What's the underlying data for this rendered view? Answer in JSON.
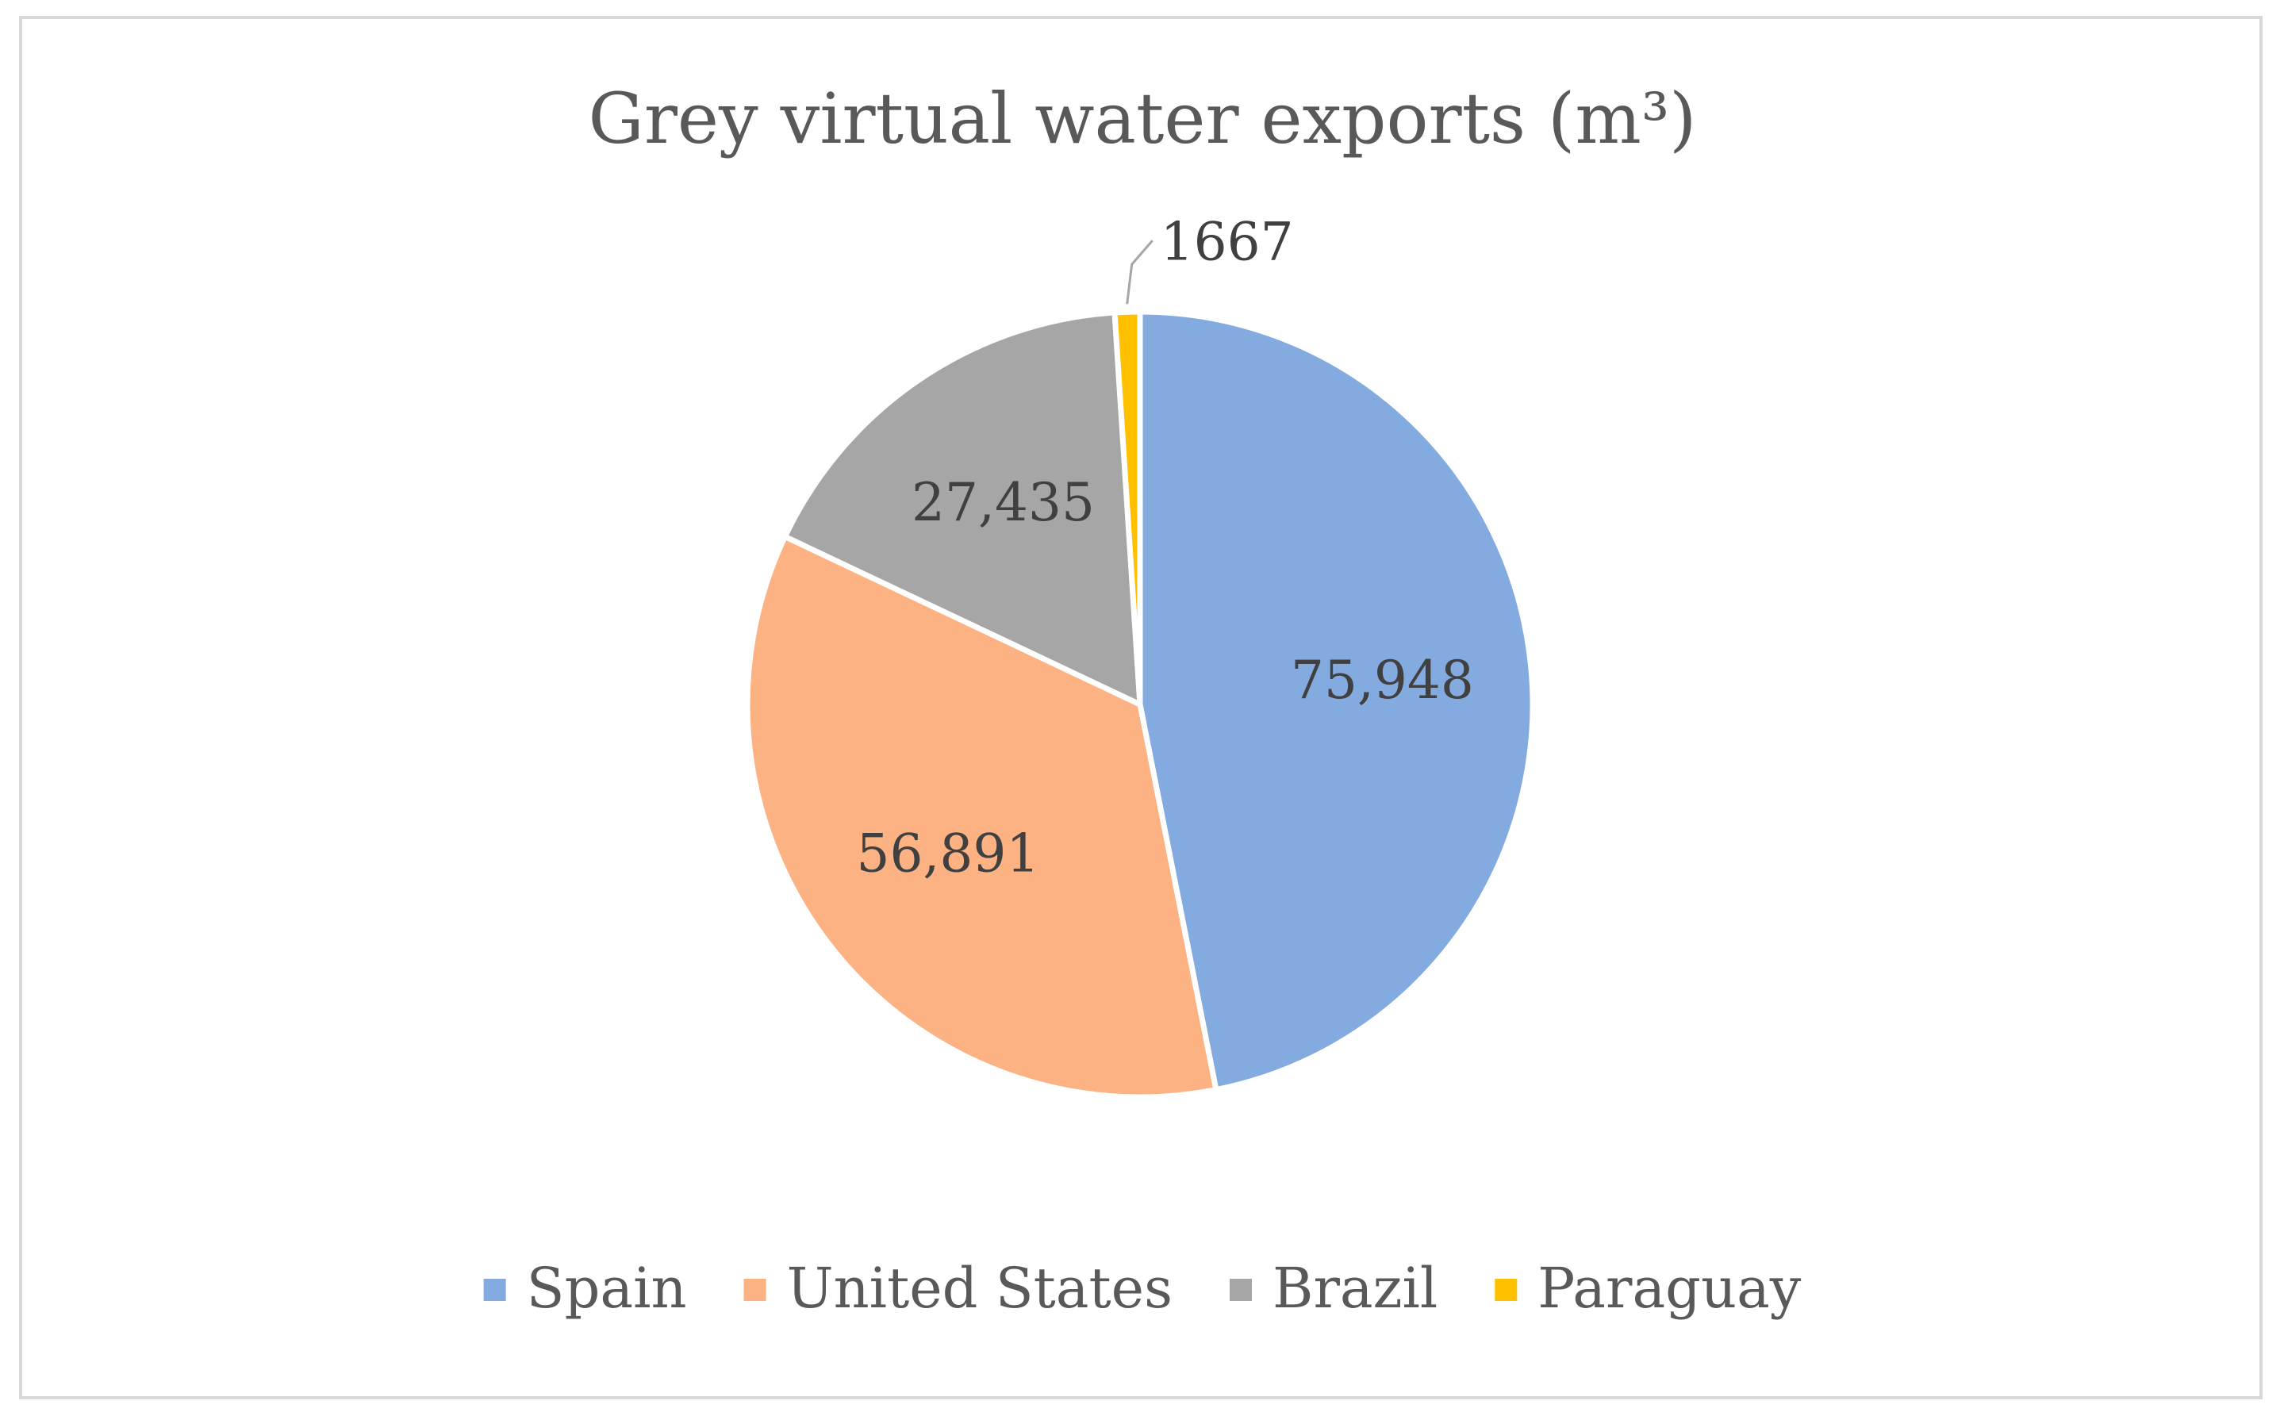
{
  "chart_data": {
    "type": "pie",
    "title": "Grey virtual water exports (m³)",
    "categories": [
      "Spain",
      "United States",
      "Brazil",
      "Paraguay"
    ],
    "values": [
      75948,
      56891,
      27435,
      1667
    ],
    "labels": [
      "75,948",
      "56,891",
      "27,435",
      "1667"
    ],
    "colors": [
      "#84ABDF",
      "#FDB283",
      "#A6A6A6",
      "#FFC000"
    ],
    "legend_position": "bottom",
    "start_angle_deg": 0,
    "direction": "clockwise"
  }
}
